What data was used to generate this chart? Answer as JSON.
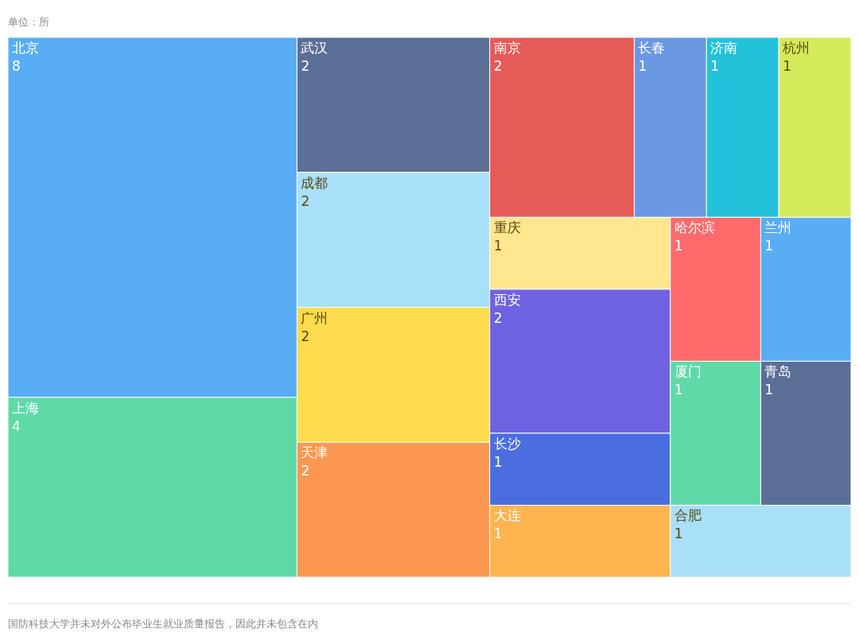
{
  "chart_data": {
    "type": "other",
    "subtitle": "单位：所",
    "categories": [
      "北京",
      "上海",
      "武汉",
      "成都",
      "广州",
      "天津",
      "南京",
      "长春",
      "济南",
      "杭州",
      "重庆",
      "西安",
      "长沙",
      "大连",
      "哈尔滨",
      "兰州",
      "厦门",
      "青岛",
      "合肥"
    ],
    "values": [
      8,
      4,
      2,
      2,
      2,
      2,
      2,
      1,
      1,
      1,
      1,
      2,
      1,
      1,
      1,
      1,
      1,
      1,
      1
    ],
    "colors": [
      "#58adf5",
      "#5fd9a8",
      "#5b6e96",
      "#a8dff9",
      "#fddb4c",
      "#fd9850",
      "#e55b57",
      "#6b98e2",
      "#24c1db",
      "#d5ea5a",
      "#ffe68f",
      "#6e62e2",
      "#4a6ee0",
      "#ffb44f",
      "#ff6b6b",
      "#58adf5",
      "#5fd9a8",
      "#5b6e96",
      "#a8dff9"
    ],
    "data_labels": true,
    "annotations": [
      "国防科技大学并未对外公布毕业生就业质量报告，因此并未包含在内"
    ]
  }
}
